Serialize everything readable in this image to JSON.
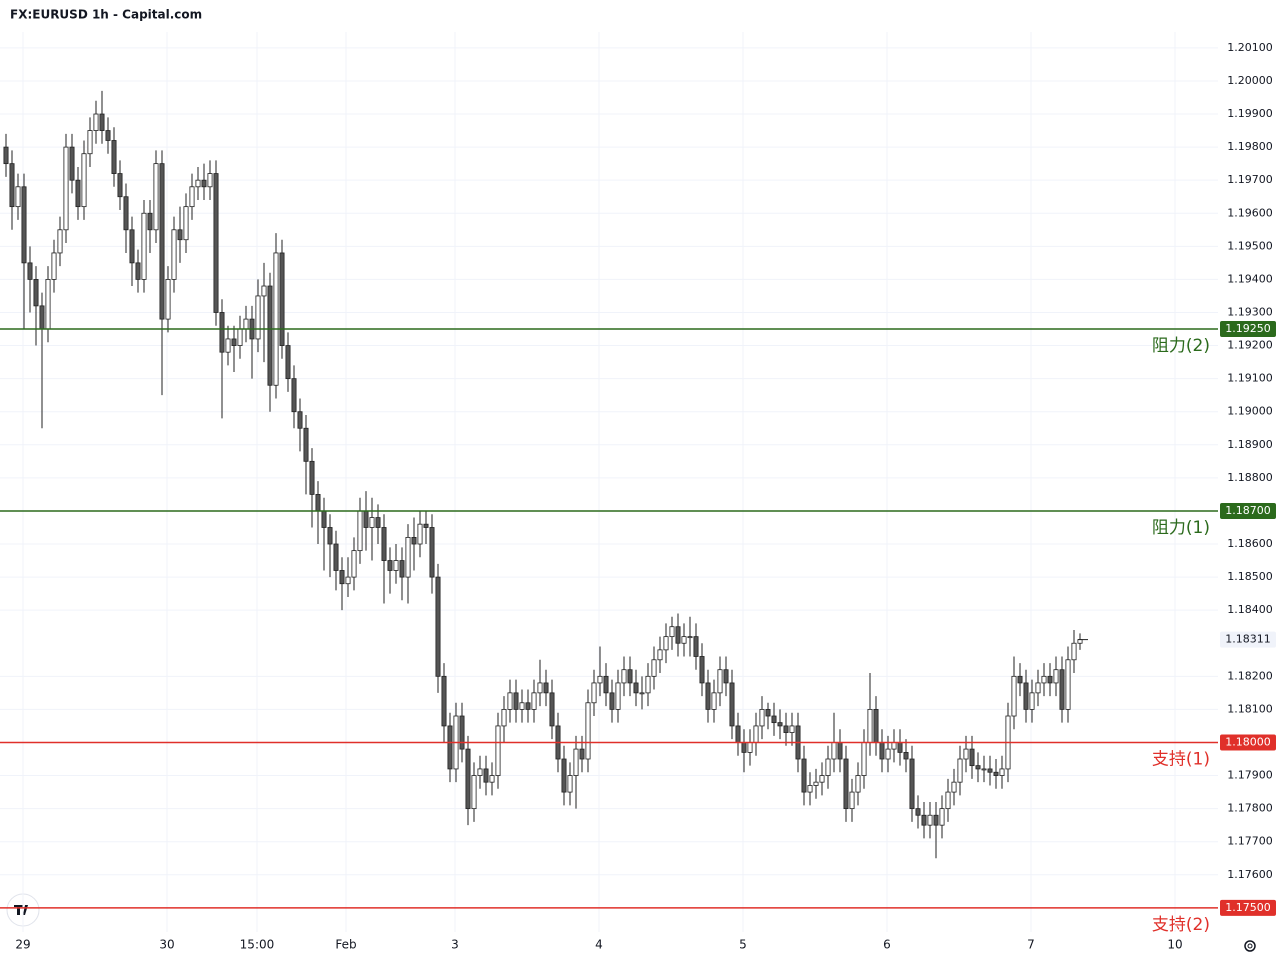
{
  "chart_data": {
    "type": "candlestick",
    "title": "FX:EURUSD 1h - Capital.com",
    "up_color": "#ffffff",
    "down_color": "#555555",
    "border_color": "#222222",
    "xlim": [
      -1,
      202
    ],
    "ylim": [
      1.17427,
      1.20148
    ],
    "xticks": [
      {
        "value": 2.83,
        "label": "29"
      },
      {
        "value": 26.83,
        "label": "30"
      },
      {
        "value": 41.83,
        "label": "15:00"
      },
      {
        "value": 56.67,
        "label": "Feb"
      },
      {
        "value": 74.83,
        "label": "3"
      },
      {
        "value": 98.83,
        "label": "4"
      },
      {
        "value": 122.83,
        "label": "5"
      },
      {
        "value": 146.83,
        "label": "6"
      },
      {
        "value": 170.83,
        "label": "7"
      },
      {
        "value": 194.83,
        "label": "10"
      }
    ],
    "yticks": [
      {
        "value": 1.176,
        "label": "1.17600"
      },
      {
        "value": 1.177,
        "label": "1.17700"
      },
      {
        "value": 1.178,
        "label": "1.17800"
      },
      {
        "value": 1.179,
        "label": "1.17900"
      },
      {
        "value": 1.181,
        "label": "1.18100"
      },
      {
        "value": 1.182,
        "label": "1.18200"
      },
      {
        "value": 1.184,
        "label": "1.18400"
      },
      {
        "value": 1.185,
        "label": "1.18500"
      },
      {
        "value": 1.186,
        "label": "1.18600"
      },
      {
        "value": 1.188,
        "label": "1.18800"
      },
      {
        "value": 1.189,
        "label": "1.18900"
      },
      {
        "value": 1.19,
        "label": "1.19000"
      },
      {
        "value": 1.191,
        "label": "1.19100"
      },
      {
        "value": 1.192,
        "label": "1.19200"
      },
      {
        "value": 1.193,
        "label": "1.19300"
      },
      {
        "value": 1.194,
        "label": "1.19400"
      },
      {
        "value": 1.195,
        "label": "1.19500"
      },
      {
        "value": 1.196,
        "label": "1.19600"
      },
      {
        "value": 1.197,
        "label": "1.19700"
      },
      {
        "value": 1.198,
        "label": "1.19800"
      },
      {
        "value": 1.199,
        "label": "1.19900"
      },
      {
        "value": 1.2,
        "label": "1.20000"
      },
      {
        "value": 1.201,
        "label": "1.20100"
      }
    ],
    "levels": [
      {
        "value": 1.1925,
        "label": "1.19250",
        "name": "阻力(2)",
        "color": "#2b6a1c"
      },
      {
        "value": 1.187,
        "label": "1.18700",
        "name": "阻力(1)",
        "color": "#2b6a1c"
      },
      {
        "value": 1.18,
        "label": "1.18000",
        "name": "支持(1)",
        "color": "#e0302a"
      },
      {
        "value": 1.175,
        "label": "1.17500",
        "name": "支持(2)",
        "color": "#e0302a"
      }
    ],
    "last_price": {
      "value": 1.18311,
      "label": "1.18311"
    },
    "ohlc": [
      [
        1.198,
        1.1984,
        1.1971,
        1.1975
      ],
      [
        1.1975,
        1.1979,
        1.1955,
        1.1962
      ],
      [
        1.1962,
        1.1972,
        1.1958,
        1.1968
      ],
      [
        1.1968,
        1.1972,
        1.1925,
        1.1945
      ],
      [
        1.1945,
        1.195,
        1.193,
        1.194
      ],
      [
        1.194,
        1.1944,
        1.192,
        1.1932
      ],
      [
        1.1932,
        1.1936,
        1.1895,
        1.1925
      ],
      [
        1.1925,
        1.1944,
        1.1921,
        1.194
      ],
      [
        1.194,
        1.1952,
        1.1936,
        1.1948
      ],
      [
        1.1948,
        1.1959,
        1.1944,
        1.1955
      ],
      [
        1.1955,
        1.1984,
        1.1951,
        1.198
      ],
      [
        1.198,
        1.1984,
        1.1966,
        1.197
      ],
      [
        1.197,
        1.1974,
        1.1958,
        1.1962
      ],
      [
        1.1962,
        1.1982,
        1.1958,
        1.1978
      ],
      [
        1.1978,
        1.1989,
        1.1974,
        1.1985
      ],
      [
        1.1985,
        1.1994,
        1.1981,
        1.199
      ],
      [
        1.199,
        1.1997,
        1.1981,
        1.1985
      ],
      [
        1.1985,
        1.1989,
        1.1978,
        1.1982
      ],
      [
        1.1982,
        1.1986,
        1.1968,
        1.1972
      ],
      [
        1.1972,
        1.1976,
        1.1961,
        1.1965
      ],
      [
        1.1965,
        1.1969,
        1.1948,
        1.1955
      ],
      [
        1.1955,
        1.1959,
        1.1938,
        1.1945
      ],
      [
        1.1945,
        1.1949,
        1.1936,
        1.194
      ],
      [
        1.194,
        1.1964,
        1.1936,
        1.196
      ],
      [
        1.196,
        1.1964,
        1.1948,
        1.1955
      ],
      [
        1.1955,
        1.1979,
        1.1951,
        1.1975
      ],
      [
        1.1975,
        1.1979,
        1.1905,
        1.1928
      ],
      [
        1.1928,
        1.1944,
        1.1924,
        1.194
      ],
      [
        1.194,
        1.1959,
        1.1936,
        1.1955
      ],
      [
        1.1955,
        1.1962,
        1.1945,
        1.1952
      ],
      [
        1.1952,
        1.1966,
        1.1948,
        1.1962
      ],
      [
        1.1962,
        1.1972,
        1.1958,
        1.1968
      ],
      [
        1.1968,
        1.1974,
        1.1964,
        1.197
      ],
      [
        1.197,
        1.1975,
        1.1964,
        1.1968
      ],
      [
        1.1968,
        1.1976,
        1.1964,
        1.1972
      ],
      [
        1.1972,
        1.1976,
        1.1926,
        1.193
      ],
      [
        1.193,
        1.1934,
        1.1898,
        1.1918
      ],
      [
        1.1918,
        1.1926,
        1.1914,
        1.1922
      ],
      [
        1.1922,
        1.1926,
        1.1912,
        1.192
      ],
      [
        1.192,
        1.1929,
        1.1916,
        1.1925
      ],
      [
        1.1925,
        1.1932,
        1.1921,
        1.1928
      ],
      [
        1.1928,
        1.1932,
        1.191,
        1.1922
      ],
      [
        1.1922,
        1.194,
        1.1918,
        1.1935
      ],
      [
        1.1935,
        1.1945,
        1.1915,
        1.1938
      ],
      [
        1.1938,
        1.1942,
        1.19,
        1.1908
      ],
      [
        1.1908,
        1.1954,
        1.1904,
        1.1948
      ],
      [
        1.1948,
        1.1952,
        1.1916,
        1.192
      ],
      [
        1.192,
        1.1924,
        1.1906,
        1.191
      ],
      [
        1.191,
        1.1914,
        1.1895,
        1.19
      ],
      [
        1.19,
        1.1904,
        1.1888,
        1.1895
      ],
      [
        1.1895,
        1.1899,
        1.1875,
        1.1885
      ],
      [
        1.1885,
        1.1889,
        1.1865,
        1.1875
      ],
      [
        1.1875,
        1.1879,
        1.186,
        1.187
      ],
      [
        1.187,
        1.1874,
        1.1852,
        1.1865
      ],
      [
        1.1865,
        1.1869,
        1.185,
        1.186
      ],
      [
        1.186,
        1.1864,
        1.1846,
        1.1852
      ],
      [
        1.1852,
        1.1856,
        1.184,
        1.1848
      ],
      [
        1.1848,
        1.1856,
        1.1844,
        1.185
      ],
      [
        1.185,
        1.1862,
        1.1846,
        1.1858
      ],
      [
        1.1858,
        1.1874,
        1.1854,
        1.187
      ],
      [
        1.187,
        1.1876,
        1.1858,
        1.1865
      ],
      [
        1.1865,
        1.1874,
        1.1855,
        1.1868
      ],
      [
        1.1868,
        1.1872,
        1.186,
        1.1865
      ],
      [
        1.1865,
        1.1869,
        1.1842,
        1.1855
      ],
      [
        1.1855,
        1.1859,
        1.1845,
        1.1852
      ],
      [
        1.1852,
        1.186,
        1.1848,
        1.1855
      ],
      [
        1.1855,
        1.1859,
        1.1843,
        1.185
      ],
      [
        1.185,
        1.1866,
        1.1842,
        1.1862
      ],
      [
        1.1862,
        1.1868,
        1.1852,
        1.186
      ],
      [
        1.186,
        1.187,
        1.1856,
        1.1866
      ],
      [
        1.1866,
        1.187,
        1.186,
        1.1865
      ],
      [
        1.1865,
        1.1869,
        1.1845,
        1.185
      ],
      [
        1.185,
        1.1854,
        1.1815,
        1.182
      ],
      [
        1.182,
        1.1824,
        1.18,
        1.1805
      ],
      [
        1.1805,
        1.1809,
        1.1788,
        1.1792
      ],
      [
        1.1792,
        1.1812,
        1.1788,
        1.1808
      ],
      [
        1.1808,
        1.1812,
        1.1794,
        1.1798
      ],
      [
        1.1798,
        1.1802,
        1.1775,
        1.178
      ],
      [
        1.178,
        1.1794,
        1.1776,
        1.179
      ],
      [
        1.179,
        1.1796,
        1.1786,
        1.1792
      ],
      [
        1.1792,
        1.1796,
        1.1784,
        1.1788
      ],
      [
        1.1788,
        1.1794,
        1.1784,
        1.179
      ],
      [
        1.179,
        1.1809,
        1.1786,
        1.1805
      ],
      [
        1.1805,
        1.1814,
        1.18,
        1.181
      ],
      [
        1.181,
        1.1819,
        1.1806,
        1.1815
      ],
      [
        1.1815,
        1.1819,
        1.1806,
        1.181
      ],
      [
        1.181,
        1.1816,
        1.1806,
        1.1812
      ],
      [
        1.1812,
        1.1816,
        1.1806,
        1.181
      ],
      [
        1.181,
        1.1819,
        1.1806,
        1.1815
      ],
      [
        1.1815,
        1.1825,
        1.1811,
        1.1818
      ],
      [
        1.1818,
        1.1822,
        1.1811,
        1.1815
      ],
      [
        1.1815,
        1.1819,
        1.1801,
        1.1805
      ],
      [
        1.1805,
        1.1809,
        1.1791,
        1.1795
      ],
      [
        1.1795,
        1.1799,
        1.1781,
        1.1785
      ],
      [
        1.1785,
        1.1794,
        1.1781,
        1.179
      ],
      [
        1.179,
        1.1802,
        1.178,
        1.1798
      ],
      [
        1.1798,
        1.1802,
        1.1791,
        1.1795
      ],
      [
        1.1795,
        1.1816,
        1.1791,
        1.1812
      ],
      [
        1.1812,
        1.1822,
        1.1808,
        1.1818
      ],
      [
        1.1818,
        1.1829,
        1.1814,
        1.182
      ],
      [
        1.182,
        1.1824,
        1.1811,
        1.1815
      ],
      [
        1.1815,
        1.1819,
        1.1806,
        1.181
      ],
      [
        1.181,
        1.1822,
        1.1806,
        1.1818
      ],
      [
        1.1818,
        1.1826,
        1.1814,
        1.1822
      ],
      [
        1.1822,
        1.1826,
        1.1814,
        1.1818
      ],
      [
        1.1818,
        1.1822,
        1.1811,
        1.1815
      ],
      [
        1.1815,
        1.182,
        1.181,
        1.1815
      ],
      [
        1.1815,
        1.1824,
        1.1811,
        1.182
      ],
      [
        1.182,
        1.1829,
        1.1816,
        1.1825
      ],
      [
        1.1825,
        1.1832,
        1.1821,
        1.1828
      ],
      [
        1.1828,
        1.1836,
        1.1824,
        1.1832
      ],
      [
        1.1832,
        1.1838,
        1.1828,
        1.1835
      ],
      [
        1.1835,
        1.1839,
        1.1826,
        1.183
      ],
      [
        1.183,
        1.1836,
        1.1826,
        1.1832
      ],
      [
        1.1832,
        1.1838,
        1.1826,
        1.1832
      ],
      [
        1.1832,
        1.1836,
        1.1822,
        1.1826
      ],
      [
        1.1826,
        1.183,
        1.1814,
        1.1818
      ],
      [
        1.1818,
        1.1822,
        1.1806,
        1.181
      ],
      [
        1.181,
        1.1819,
        1.1806,
        1.1815
      ],
      [
        1.1815,
        1.1826,
        1.1811,
        1.1822
      ],
      [
        1.1822,
        1.1826,
        1.1814,
        1.1818
      ],
      [
        1.1818,
        1.1822,
        1.1801,
        1.1805
      ],
      [
        1.1805,
        1.1809,
        1.1796,
        1.18
      ],
      [
        1.18,
        1.1804,
        1.1791,
        1.1797
      ],
      [
        1.1797,
        1.1804,
        1.1793,
        1.18
      ],
      [
        1.18,
        1.1809,
        1.1796,
        1.1805
      ],
      [
        1.1805,
        1.1814,
        1.1801,
        1.181
      ],
      [
        1.181,
        1.1812,
        1.1804,
        1.1808
      ],
      [
        1.1808,
        1.1812,
        1.1802,
        1.1806
      ],
      [
        1.1806,
        1.181,
        1.1801,
        1.1805
      ],
      [
        1.1805,
        1.1809,
        1.1799,
        1.1803
      ],
      [
        1.1803,
        1.1809,
        1.1799,
        1.1805
      ],
      [
        1.1805,
        1.1809,
        1.1791,
        1.1795
      ],
      [
        1.1795,
        1.1799,
        1.1781,
        1.1785
      ],
      [
        1.1785,
        1.1791,
        1.1781,
        1.1787
      ],
      [
        1.1787,
        1.1792,
        1.1783,
        1.1788
      ],
      [
        1.1788,
        1.1794,
        1.1784,
        1.179
      ],
      [
        1.179,
        1.1799,
        1.1786,
        1.1795
      ],
      [
        1.1795,
        1.1809,
        1.1791,
        1.18
      ],
      [
        1.18,
        1.1804,
        1.1791,
        1.1795
      ],
      [
        1.1795,
        1.1799,
        1.1776,
        1.178
      ],
      [
        1.178,
        1.1789,
        1.1776,
        1.1785
      ],
      [
        1.1785,
        1.1794,
        1.1781,
        1.179
      ],
      [
        1.179,
        1.1804,
        1.1786,
        1.18
      ],
      [
        1.18,
        1.1821,
        1.1796,
        1.181
      ],
      [
        1.181,
        1.1814,
        1.1796,
        1.18
      ],
      [
        1.18,
        1.1804,
        1.1791,
        1.1795
      ],
      [
        1.1795,
        1.1802,
        1.1791,
        1.1798
      ],
      [
        1.1798,
        1.1804,
        1.1794,
        1.18
      ],
      [
        1.18,
        1.1804,
        1.1793,
        1.1797
      ],
      [
        1.1797,
        1.1801,
        1.1791,
        1.1795
      ],
      [
        1.1795,
        1.1799,
        1.1776,
        1.178
      ],
      [
        1.178,
        1.1784,
        1.1774,
        1.1778
      ],
      [
        1.1778,
        1.1782,
        1.1771,
        1.1775
      ],
      [
        1.1775,
        1.1782,
        1.1771,
        1.1778
      ],
      [
        1.1778,
        1.1782,
        1.1765,
        1.1775
      ],
      [
        1.1775,
        1.1784,
        1.1771,
        1.178
      ],
      [
        1.178,
        1.1789,
        1.1776,
        1.1785
      ],
      [
        1.1785,
        1.1792,
        1.1781,
        1.1788
      ],
      [
        1.1788,
        1.1799,
        1.1784,
        1.1795
      ],
      [
        1.1795,
        1.1802,
        1.1791,
        1.1798
      ],
      [
        1.1798,
        1.1802,
        1.1789,
        1.1793
      ],
      [
        1.1793,
        1.1797,
        1.1788,
        1.1792
      ],
      [
        1.1792,
        1.1796,
        1.1788,
        1.1792
      ],
      [
        1.1792,
        1.1796,
        1.1787,
        1.1791
      ],
      [
        1.1791,
        1.1795,
        1.1786,
        1.179
      ],
      [
        1.179,
        1.1796,
        1.1786,
        1.1792
      ],
      [
        1.1792,
        1.1812,
        1.1788,
        1.1808
      ],
      [
        1.1808,
        1.1826,
        1.1804,
        1.182
      ],
      [
        1.182,
        1.1824,
        1.1814,
        1.1818
      ],
      [
        1.1818,
        1.1822,
        1.1806,
        1.181
      ],
      [
        1.181,
        1.1819,
        1.1806,
        1.1815
      ],
      [
        1.1815,
        1.1822,
        1.1811,
        1.1818
      ],
      [
        1.1818,
        1.1824,
        1.1814,
        1.182
      ],
      [
        1.182,
        1.1824,
        1.1814,
        1.1818
      ],
      [
        1.1818,
        1.1826,
        1.1814,
        1.1822
      ],
      [
        1.1822,
        1.1826,
        1.1806,
        1.181
      ],
      [
        1.181,
        1.1829,
        1.1806,
        1.1825
      ],
      [
        1.1825,
        1.1834,
        1.1821,
        1.183
      ],
      [
        1.183,
        1.1833,
        1.1828,
        1.18311
      ]
    ]
  }
}
